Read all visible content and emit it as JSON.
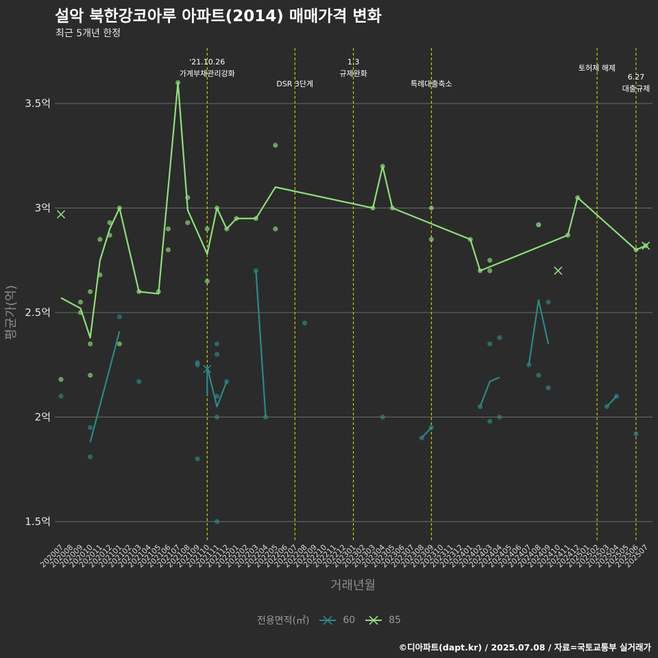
{
  "title": "설악 북한강코아루 아파트(2014) 매매가격 변화",
  "subtitle": "최근 5개년 한정",
  "caption": "©디아파트(dapt.kr) / 2025.07.08 / 자료=국토교통부 실거래가",
  "colors": {
    "background": "#2b2b2b",
    "grid": "#6e6e6e",
    "event_line": "#e6e600",
    "series_60": "#2a8a88",
    "series_85": "#8ee07a"
  },
  "legend": {
    "title": "전용면적(㎡)",
    "items": [
      "60",
      "85"
    ]
  },
  "chart_data": {
    "type": "line",
    "title": "설악 북한강코아루 아파트(2014) 매매가격 변화",
    "subtitle": "최근 5개년 한정",
    "xlabel": "거래년월",
    "ylabel": "평균가(억)",
    "ylim": [
      1.4,
      3.75
    ],
    "y_ticks": [
      1.5,
      2,
      2.5,
      3,
      3.5
    ],
    "y_tick_labels": [
      "1.5억",
      "2억",
      "2.5억",
      "3억",
      "3.5억"
    ],
    "grid": true,
    "legend_position": "bottom",
    "categories": [
      "202007",
      "202008",
      "202009",
      "202010",
      "202011",
      "202012",
      "202101",
      "202102",
      "202103",
      "202104",
      "202105",
      "202106",
      "202107",
      "202108",
      "202109",
      "202110",
      "202111",
      "202112",
      "202201",
      "202202",
      "202203",
      "202204",
      "202205",
      "202206",
      "202207",
      "202208",
      "202209",
      "202210",
      "202211",
      "202212",
      "202301",
      "202302",
      "202303",
      "202304",
      "202305",
      "202306",
      "202307",
      "202308",
      "202309",
      "202310",
      "202311",
      "202312",
      "202401",
      "202402",
      "202403",
      "202404",
      "202405",
      "202406",
      "202407",
      "202408",
      "202409",
      "202410",
      "202411",
      "202412",
      "202501",
      "202502",
      "202503",
      "202504",
      "202505",
      "202506",
      "202507"
    ],
    "series": [
      {
        "name": "60",
        "color": "#2a8a88",
        "line": [
          [
            "202010",
            1.88
          ],
          [
            "202101",
            2.41
          ],
          null,
          [
            "202110",
            2.1
          ],
          [
            "202110",
            2.24
          ],
          [
            "202111",
            2.05
          ],
          [
            "202112",
            2.17
          ],
          null,
          [
            "202203",
            2.7
          ],
          [
            "202204",
            2.0
          ],
          null,
          [
            "202308",
            1.9
          ],
          [
            "202309",
            1.95
          ],
          null,
          [
            "202402",
            2.05
          ],
          [
            "202403",
            2.17
          ],
          [
            "202404",
            2.19
          ],
          null,
          [
            "202407",
            2.25
          ],
          [
            "202408",
            2.56
          ],
          [
            "202409",
            2.35
          ],
          null,
          [
            "202503",
            2.05
          ],
          [
            "202504",
            2.1
          ]
        ],
        "points": [
          [
            "202007",
            2.1
          ],
          [
            "202010",
            1.95
          ],
          [
            "202010",
            1.81
          ],
          [
            "202101",
            2.48
          ],
          [
            "202103",
            2.17
          ],
          [
            "202109",
            2.26
          ],
          [
            "202109",
            2.25
          ],
          [
            "202109",
            1.8
          ],
          [
            "202111",
            2.35
          ],
          [
            "202111",
            2.3
          ],
          [
            "202111",
            2.1
          ],
          [
            "202111",
            2.0
          ],
          [
            "202111",
            1.5
          ],
          [
            "202112",
            2.17
          ],
          [
            "202203",
            2.7
          ],
          [
            "202204",
            2.0
          ],
          [
            "202208",
            2.45
          ],
          [
            "202304",
            2.0
          ],
          [
            "202308",
            1.9
          ],
          [
            "202309",
            1.95
          ],
          [
            "202402",
            2.05
          ],
          [
            "202403",
            2.35
          ],
          [
            "202403",
            1.98
          ],
          [
            "202404",
            2.38
          ],
          [
            "202404",
            2.0
          ],
          [
            "202407",
            2.25
          ],
          [
            "202408",
            2.2
          ],
          [
            "202408",
            2.92
          ],
          [
            "202409",
            2.55
          ],
          [
            "202409",
            2.14
          ],
          [
            "202503",
            2.05
          ],
          [
            "202504",
            2.1
          ],
          [
            "202506",
            1.92
          ]
        ],
        "markers": [
          [
            "202110",
            2.23
          ]
        ]
      },
      {
        "name": "85",
        "color": "#8ee07a",
        "line": [
          [
            "202007",
            2.57
          ],
          [
            "202009",
            2.52
          ],
          [
            "202010",
            2.38
          ],
          [
            "202011",
            2.75
          ],
          [
            "202012",
            2.9
          ],
          [
            "202101",
            3.0
          ],
          [
            "202103",
            2.6
          ],
          [
            "202105",
            2.59
          ],
          [
            "202107",
            3.6
          ],
          [
            "202108",
            2.99
          ],
          [
            "202110",
            2.78
          ],
          [
            "202111",
            3.0
          ],
          [
            "202112",
            2.9
          ],
          [
            "202201",
            2.95
          ],
          [
            "202203",
            2.95
          ],
          [
            "202205",
            3.1
          ],
          [
            "202303",
            3.0
          ],
          [
            "202304",
            3.2
          ],
          [
            "202305",
            3.0
          ],
          [
            "202401",
            2.85
          ],
          [
            "202402",
            2.7
          ],
          [
            "202411",
            2.87
          ],
          [
            "202412",
            3.05
          ],
          [
            "202506",
            2.8
          ],
          [
            "202507",
            2.82
          ]
        ],
        "points": [
          [
            "202007",
            2.18
          ],
          [
            "202009",
            2.55
          ],
          [
            "202009",
            2.5
          ],
          [
            "202010",
            2.6
          ],
          [
            "202010",
            2.35
          ],
          [
            "202010",
            2.2
          ],
          [
            "202011",
            2.85
          ],
          [
            "202011",
            2.68
          ],
          [
            "202012",
            2.93
          ],
          [
            "202012",
            2.87
          ],
          [
            "202101",
            3.0
          ],
          [
            "202101",
            2.35
          ],
          [
            "202103",
            2.6
          ],
          [
            "202105",
            2.6
          ],
          [
            "202106",
            2.9
          ],
          [
            "202106",
            2.8
          ],
          [
            "202107",
            3.6
          ],
          [
            "202108",
            3.05
          ],
          [
            "202108",
            2.93
          ],
          [
            "202110",
            2.9
          ],
          [
            "202110",
            2.65
          ],
          [
            "202111",
            3.0
          ],
          [
            "202112",
            2.9
          ],
          [
            "202201",
            2.95
          ],
          [
            "202203",
            2.95
          ],
          [
            "202205",
            3.3
          ],
          [
            "202205",
            2.9
          ],
          [
            "202303",
            3.0
          ],
          [
            "202304",
            3.2
          ],
          [
            "202305",
            3.0
          ],
          [
            "202309",
            3.0
          ],
          [
            "202309",
            2.85
          ],
          [
            "202401",
            2.85
          ],
          [
            "202402",
            2.7
          ],
          [
            "202403",
            2.75
          ],
          [
            "202403",
            2.7
          ],
          [
            "202408",
            2.92
          ],
          [
            "202411",
            2.87
          ],
          [
            "202412",
            3.05
          ],
          [
            "202506",
            2.8
          ],
          [
            "202507",
            2.82
          ]
        ],
        "markers": [
          [
            "202007",
            2.97
          ],
          [
            "202410",
            2.7
          ],
          [
            "202507",
            2.82
          ]
        ]
      }
    ],
    "events": [
      {
        "x": "202110",
        "lines": [
          "'21.10.26",
          "가계부채관리강화"
        ]
      },
      {
        "x": "202207",
        "lines": [
          "DSR 3단계"
        ]
      },
      {
        "x": "202301",
        "lines": [
          "1.3",
          "규제완화"
        ]
      },
      {
        "x": "202309",
        "lines": [
          "특례대출축소"
        ]
      },
      {
        "x": "202502",
        "lines": [
          "토허제 해제"
        ]
      },
      {
        "x": "202506",
        "lines": [
          "6.27",
          "대출규제"
        ]
      }
    ]
  }
}
